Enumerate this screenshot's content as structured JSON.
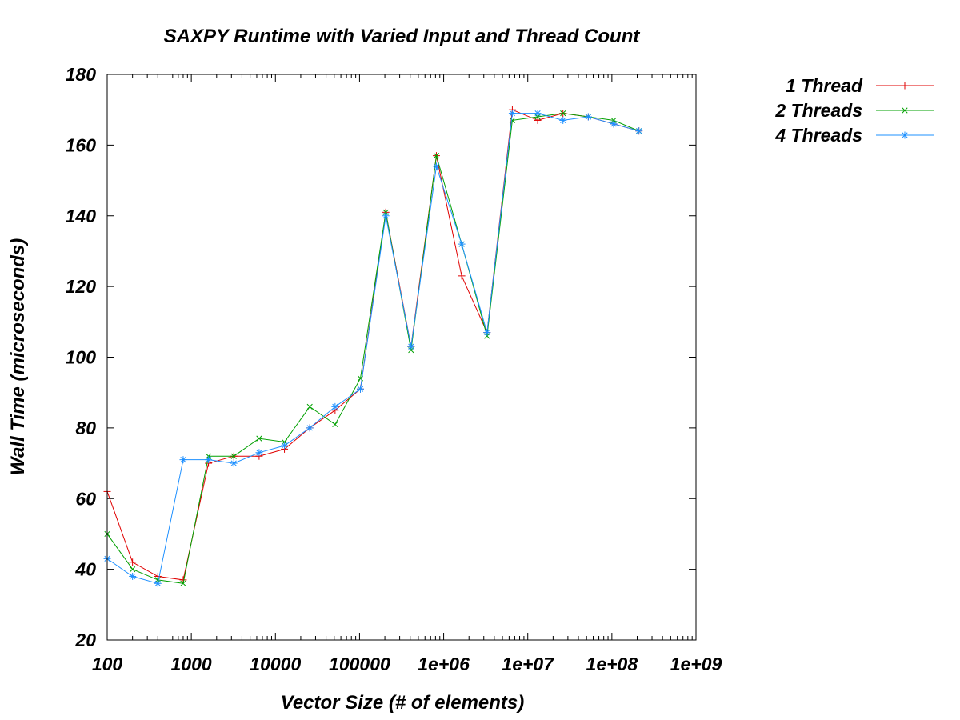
{
  "chart_data": {
    "type": "line",
    "title": "SAXPY Runtime with Varied Input and Thread Count",
    "xlabel": "Vector Size (# of elements)",
    "ylabel": "Wall Time (microseconds)",
    "x_scale": "log",
    "xlim": [
      100,
      1000000000
    ],
    "ylim": [
      20,
      180
    ],
    "x_ticks": [
      100,
      1000,
      10000,
      100000,
      1000000,
      10000000,
      100000000,
      1000000000
    ],
    "x_tick_labels": [
      "100",
      "1000",
      "10000",
      "100000",
      "1e+06",
      "1e+07",
      "1e+08",
      "1e+09"
    ],
    "y_ticks": [
      20,
      40,
      60,
      80,
      100,
      120,
      140,
      160,
      180
    ],
    "y_tick_labels": [
      "20",
      "40",
      "60",
      "80",
      "100",
      "120",
      "140",
      "160",
      "180"
    ],
    "grid": false,
    "legend_position": "outside-top-right",
    "x": [
      100,
      200,
      400,
      800,
      1600,
      3200,
      6400,
      12800,
      25600,
      51200,
      102400,
      204800,
      409600,
      819200,
      1638400,
      3276800,
      6553600,
      13107200,
      26214400,
      52428800,
      104857600,
      209715200
    ],
    "series": [
      {
        "name": "1 Thread",
        "color": "#e00000",
        "marker": "plus",
        "values": [
          62,
          42,
          38,
          37,
          70,
          72,
          72,
          74,
          80,
          85,
          91,
          141,
          103,
          157,
          123,
          107,
          170,
          167,
          169,
          168,
          166,
          164
        ]
      },
      {
        "name": "2 Threads",
        "color": "#00a000",
        "marker": "cross",
        "values": [
          50,
          40,
          37,
          36,
          72,
          72,
          77,
          76,
          86,
          81,
          94,
          141,
          102,
          157,
          132,
          106,
          167,
          168,
          169,
          168,
          167,
          164
        ]
      },
      {
        "name": "4 Threads",
        "color": "#1e90ff",
        "marker": "star",
        "values": [
          43,
          38,
          36,
          71,
          71,
          70,
          73,
          75,
          80,
          86,
          91,
          140,
          103,
          154,
          132,
          107,
          169,
          169,
          167,
          168,
          166,
          164
        ]
      }
    ]
  }
}
